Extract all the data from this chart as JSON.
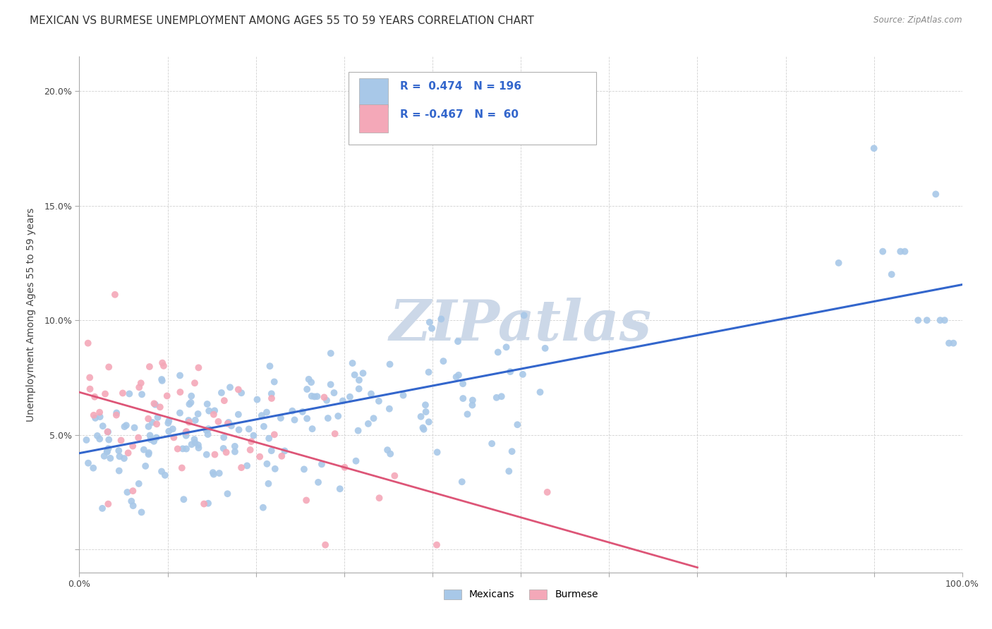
{
  "title": "MEXICAN VS BURMESE UNEMPLOYMENT AMONG AGES 55 TO 59 YEARS CORRELATION CHART",
  "source": "Source: ZipAtlas.com",
  "ylabel": "Unemployment Among Ages 55 to 59 years",
  "xlabel": "",
  "xlim": [
    0,
    1.0
  ],
  "ylim": [
    -0.01,
    0.215
  ],
  "xticks": [
    0.0,
    0.1,
    0.2,
    0.3,
    0.4,
    0.5,
    0.6,
    0.7,
    0.8,
    0.9,
    1.0
  ],
  "xticklabels": [
    "0.0%",
    "",
    "",
    "",
    "",
    "",
    "",
    "",
    "",
    "",
    "100.0%"
  ],
  "yticks": [
    0.0,
    0.05,
    0.1,
    0.15,
    0.2
  ],
  "yticklabels": [
    "",
    "5.0%",
    "10.0%",
    "15.0%",
    "20.0%"
  ],
  "mexican_R": 0.474,
  "mexican_N": 196,
  "burmese_R": -0.467,
  "burmese_N": 60,
  "mexican_color": "#a8c8e8",
  "burmese_color": "#f4a8b8",
  "mexican_line_color": "#3366cc",
  "burmese_line_color": "#dd5577",
  "watermark": "ZIPatlas",
  "watermark_color": "#ccd8e8",
  "background_color": "#ffffff",
  "grid_color": "#cccccc",
  "title_fontsize": 11,
  "axis_fontsize": 9,
  "tick_fontsize": 9,
  "legend_text_color": "#3366cc"
}
